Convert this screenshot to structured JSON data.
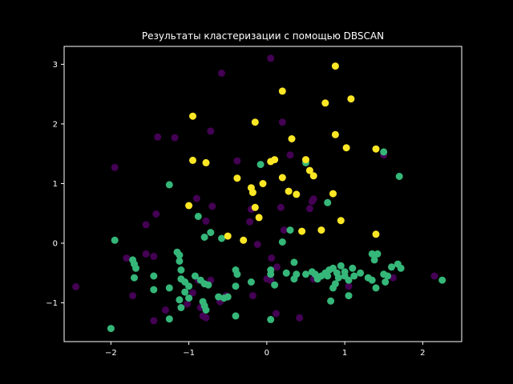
{
  "chart_data": {
    "type": "scatter",
    "title": "Результаты кластеризации с помощью DBSCAN",
    "xlabel": "",
    "ylabel": "",
    "xlim": [
      -2.6,
      2.5
    ],
    "ylim": [
      -1.65,
      3.3
    ],
    "xticks": [
      -2,
      -1,
      0,
      1,
      2
    ],
    "xtick_labels": [
      "−2",
      "−1",
      "0",
      "1",
      "2"
    ],
    "yticks": [
      -1,
      0,
      1,
      2,
      3
    ],
    "ytick_labels": [
      "−1",
      "0",
      "1",
      "2",
      "3"
    ],
    "grid": false,
    "colors": {
      "background": "#000000",
      "axes": "#ffffff",
      "cluster_noise": "#440154",
      "cluster_0": "#21918c",
      "cluster_green": "#35b779",
      "cluster_yellow": "#fde725"
    },
    "series": [
      {
        "color": "#440154",
        "points": [
          [
            0.05,
            3.1
          ],
          [
            -0.58,
            2.85
          ],
          [
            0.2,
            2.03
          ],
          [
            -1.4,
            1.78
          ],
          [
            -1.18,
            1.77
          ],
          [
            -0.72,
            1.88
          ],
          [
            -1.95,
            1.27
          ],
          [
            -0.38,
            1.38
          ],
          [
            -0.9,
            0.75
          ],
          [
            -0.78,
            0.37
          ],
          [
            -0.7,
            0.62
          ],
          [
            -1.42,
            0.49
          ],
          [
            -1.55,
            0.31
          ],
          [
            0.3,
            1.48
          ],
          [
            0.22,
            0.22
          ],
          [
            1.5,
            1.48
          ],
          [
            -0.2,
            0.57
          ],
          [
            -0.22,
            0.36
          ],
          [
            -0.12,
            -0.02
          ],
          [
            0.55,
            0.58
          ],
          [
            0.58,
            0.7
          ],
          [
            0.6,
            0.74
          ],
          [
            -1.55,
            -0.18
          ],
          [
            -1.45,
            -0.22
          ],
          [
            -1.8,
            -0.25
          ],
          [
            0.06,
            -0.25
          ],
          [
            0.13,
            -0.4
          ],
          [
            0.18,
            0.6
          ],
          [
            -2.45,
            -0.73
          ],
          [
            -1.72,
            -0.88
          ],
          [
            -1.3,
            -1.12
          ],
          [
            -1.45,
            -1.3
          ],
          [
            -1.02,
            -1.02
          ],
          [
            -0.85,
            -1.08
          ],
          [
            -0.82,
            -1.22
          ],
          [
            -0.78,
            -1.25
          ],
          [
            -0.95,
            -0.83
          ],
          [
            -0.88,
            -0.62
          ],
          [
            -0.72,
            -0.62
          ],
          [
            -0.6,
            -0.98
          ],
          [
            -0.52,
            -0.88
          ],
          [
            -0.18,
            -0.88
          ],
          [
            0.0,
            -0.6
          ],
          [
            0.05,
            -0.62
          ],
          [
            0.12,
            -1.18
          ],
          [
            0.42,
            -1.25
          ],
          [
            0.6,
            -0.6
          ],
          [
            1.05,
            -0.72
          ],
          [
            1.62,
            -0.58
          ],
          [
            2.15,
            -0.55
          ]
        ]
      },
      {
        "color": "#35b779",
        "points": [
          [
            -1.95,
            0.05
          ],
          [
            -1.25,
            0.98
          ],
          [
            -0.08,
            1.32
          ],
          [
            0.5,
            1.35
          ],
          [
            1.5,
            1.53
          ],
          [
            1.7,
            1.12
          ],
          [
            -0.88,
            0.45
          ],
          [
            -0.72,
            0.18
          ],
          [
            -0.58,
            0.08
          ],
          [
            -0.8,
            0.1
          ],
          [
            0.2,
            0.02
          ],
          [
            0.3,
            0.22
          ],
          [
            0.78,
            0.68
          ],
          [
            -1.72,
            -0.28
          ],
          [
            -1.7,
            -0.35
          ],
          [
            -1.68,
            -0.42
          ],
          [
            -1.7,
            -0.58
          ],
          [
            -1.45,
            -0.55
          ],
          [
            -1.45,
            -0.78
          ],
          [
            -1.25,
            -0.75
          ],
          [
            -1.15,
            -0.15
          ],
          [
            -1.12,
            -0.2
          ],
          [
            -1.12,
            -0.3
          ],
          [
            -1.1,
            -0.45
          ],
          [
            -1.1,
            -0.6
          ],
          [
            -1.05,
            -0.65
          ],
          [
            -1.0,
            -0.72
          ],
          [
            -1.05,
            -0.82
          ],
          [
            -1.0,
            -0.92
          ],
          [
            -1.12,
            -0.95
          ],
          [
            -1.1,
            -1.08
          ],
          [
            -0.92,
            -0.55
          ],
          [
            -0.85,
            -0.62
          ],
          [
            -0.8,
            -0.68
          ],
          [
            -0.75,
            -0.7
          ],
          [
            -0.82,
            -0.98
          ],
          [
            -0.8,
            -1.05
          ],
          [
            -0.78,
            -1.12
          ],
          [
            -0.62,
            -0.9
          ],
          [
            -0.55,
            -0.92
          ],
          [
            -0.4,
            -0.45
          ],
          [
            -0.38,
            -0.52
          ],
          [
            -0.4,
            -0.72
          ],
          [
            -0.2,
            -0.65
          ],
          [
            -0.4,
            -1.22
          ],
          [
            -0.5,
            -0.9
          ],
          [
            0.05,
            -0.45
          ],
          [
            0.05,
            -0.52
          ],
          [
            0.1,
            -0.7
          ],
          [
            0.25,
            -0.5
          ],
          [
            0.35,
            -0.32
          ],
          [
            0.38,
            -0.52
          ],
          [
            0.35,
            -0.6
          ],
          [
            0.5,
            -0.52
          ],
          [
            0.58,
            -0.48
          ],
          [
            0.62,
            -0.52
          ],
          [
            0.65,
            -0.6
          ],
          [
            0.7,
            -0.55
          ],
          [
            0.75,
            -0.5
          ],
          [
            0.78,
            -0.55
          ],
          [
            0.8,
            -0.45
          ],
          [
            0.85,
            -0.42
          ],
          [
            0.9,
            -0.5
          ],
          [
            0.92,
            -0.58
          ],
          [
            0.88,
            -0.68
          ],
          [
            0.85,
            -0.75
          ],
          [
            0.95,
            -0.38
          ],
          [
            1.0,
            -0.48
          ],
          [
            1.0,
            -0.55
          ],
          [
            1.05,
            -0.62
          ],
          [
            1.1,
            -0.42
          ],
          [
            1.12,
            -0.55
          ],
          [
            1.2,
            -0.5
          ],
          [
            1.3,
            -0.58
          ],
          [
            1.35,
            -0.18
          ],
          [
            1.38,
            -0.28
          ],
          [
            1.42,
            -0.18
          ],
          [
            1.35,
            -0.62
          ],
          [
            1.4,
            -0.75
          ],
          [
            1.5,
            -0.52
          ],
          [
            1.55,
            -0.55
          ],
          [
            1.52,
            -0.65
          ],
          [
            1.6,
            -0.4
          ],
          [
            1.68,
            -0.35
          ],
          [
            1.72,
            -0.42
          ],
          [
            2.25,
            -0.62
          ],
          [
            -2.0,
            -1.43
          ],
          [
            -1.25,
            -1.27
          ],
          [
            0.05,
            -1.28
          ],
          [
            0.82,
            -0.97
          ],
          [
            1.05,
            -0.88
          ]
        ]
      },
      {
        "color": "#fde725",
        "points": [
          [
            0.88,
            2.97
          ],
          [
            0.2,
            2.55
          ],
          [
            0.75,
            2.35
          ],
          [
            1.08,
            2.42
          ],
          [
            -0.95,
            2.13
          ],
          [
            -0.15,
            2.03
          ],
          [
            0.32,
            1.75
          ],
          [
            0.88,
            1.82
          ],
          [
            1.02,
            1.6
          ],
          [
            1.4,
            1.58
          ],
          [
            -0.95,
            1.39
          ],
          [
            -0.78,
            1.35
          ],
          [
            0.05,
            1.37
          ],
          [
            0.1,
            1.4
          ],
          [
            0.5,
            1.4
          ],
          [
            0.55,
            1.22
          ],
          [
            0.6,
            1.13
          ],
          [
            0.2,
            1.1
          ],
          [
            -0.38,
            1.09
          ],
          [
            -0.05,
            1.0
          ],
          [
            -0.2,
            0.93
          ],
          [
            -0.18,
            0.85
          ],
          [
            0.28,
            0.87
          ],
          [
            0.38,
            0.82
          ],
          [
            0.85,
            0.83
          ],
          [
            -1.0,
            0.63
          ],
          [
            -0.15,
            0.6
          ],
          [
            -0.1,
            0.43
          ],
          [
            0.95,
            0.38
          ],
          [
            0.7,
            0.22
          ],
          [
            0.45,
            0.2
          ],
          [
            1.4,
            0.15
          ],
          [
            -0.5,
            0.12
          ],
          [
            -0.3,
            0.05
          ]
        ]
      }
    ]
  }
}
